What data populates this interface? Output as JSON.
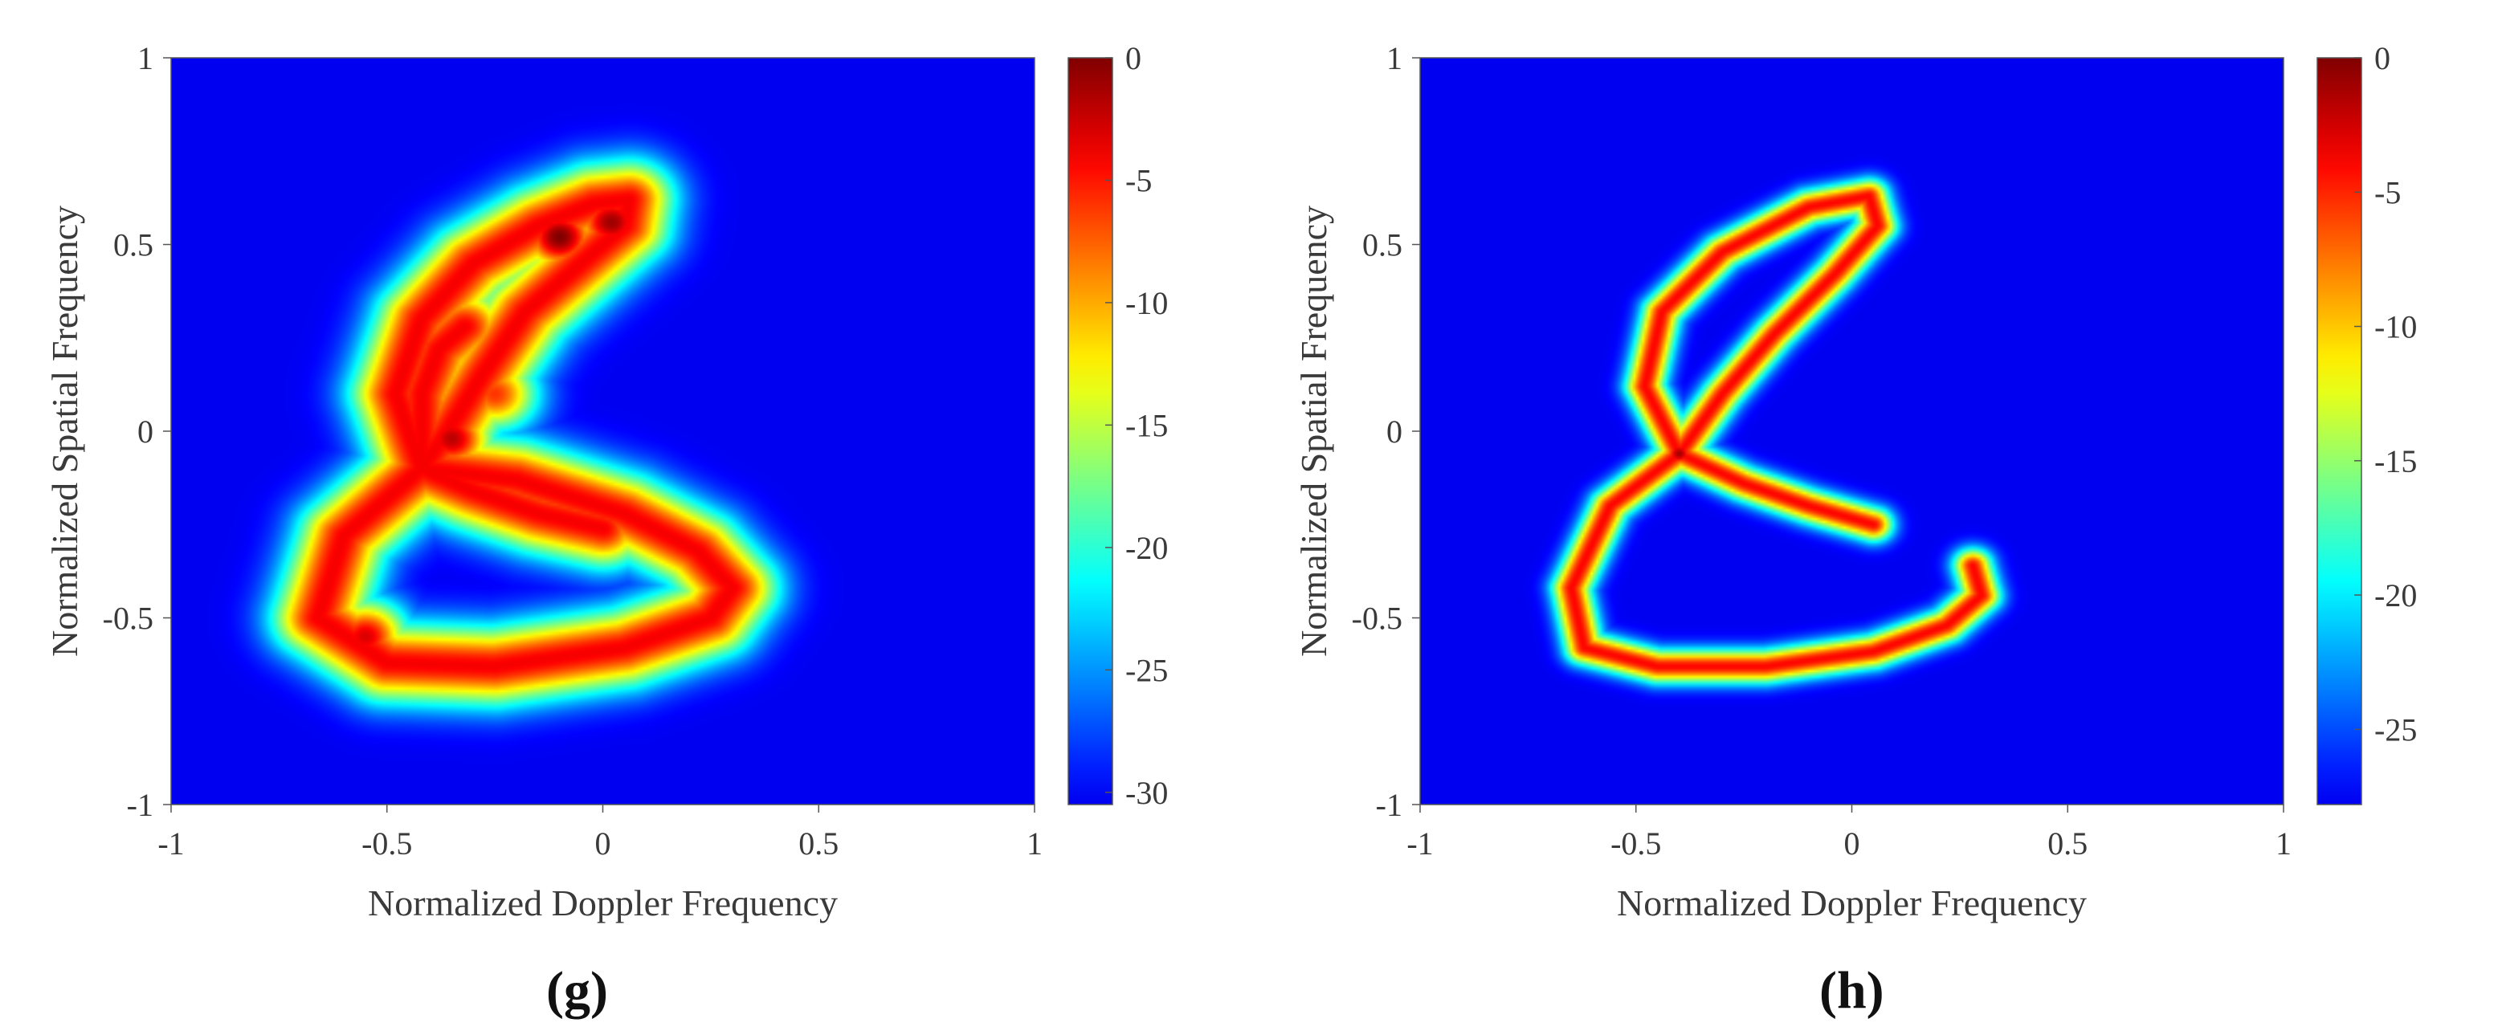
{
  "chart_data": [
    {
      "type": "heatmap",
      "panel_label": "(g)",
      "xlabel": "Normalized Doppler Frequency",
      "ylabel": "Normalized Spatial Frequency",
      "xlim": [
        -1,
        1
      ],
      "ylim": [
        -1,
        1
      ],
      "x_ticks": [
        "-1",
        "-0.5",
        "0",
        "0.5",
        "1"
      ],
      "y_ticks": [
        "1",
        "0.5",
        "0",
        "-0.5",
        "-1"
      ],
      "colorbar": {
        "range": [
          -30.5,
          0
        ],
        "ticks": [
          "0",
          "-5",
          "-10",
          "-15",
          "-20",
          "-25",
          "-30"
        ],
        "colormap": "jet"
      },
      "ridge_width": 0.075,
      "curves": [
        {
          "name": "lower-loop",
          "points": [
            [
              -0.42,
              -0.1
            ],
            [
              -0.6,
              -0.28
            ],
            [
              -0.66,
              -0.5
            ],
            [
              -0.5,
              -0.62
            ],
            [
              -0.25,
              -0.63
            ],
            [
              0.05,
              -0.58
            ],
            [
              0.25,
              -0.5
            ],
            [
              0.3,
              -0.42
            ],
            [
              0.22,
              -0.32
            ],
            [
              0.05,
              -0.22
            ],
            [
              -0.2,
              -0.13
            ],
            [
              -0.42,
              -0.1
            ]
          ]
        },
        {
          "name": "upper-outer-arc",
          "points": [
            [
              -0.42,
              -0.1
            ],
            [
              -0.48,
              0.1
            ],
            [
              -0.42,
              0.3
            ],
            [
              -0.3,
              0.45
            ],
            [
              -0.15,
              0.55
            ],
            [
              -0.02,
              0.61
            ],
            [
              0.06,
              0.62
            ],
            [
              0.05,
              0.55
            ],
            [
              -0.05,
              0.45
            ],
            [
              -0.18,
              0.32
            ],
            [
              -0.28,
              0.15
            ],
            [
              -0.36,
              0.0
            ],
            [
              -0.42,
              -0.1
            ]
          ]
        },
        {
          "name": "spur",
          "points": [
            [
              -0.42,
              -0.1
            ],
            [
              -0.3,
              -0.16
            ],
            [
              -0.15,
              -0.22
            ],
            [
              0.0,
              -0.26
            ]
          ]
        },
        {
          "name": "inner-arc",
          "points": [
            [
              -0.42,
              -0.1
            ],
            [
              -0.42,
              0.1
            ],
            [
              -0.38,
              0.22
            ],
            [
              -0.32,
              0.28
            ]
          ]
        }
      ],
      "blobs": [
        {
          "x": -0.1,
          "y": 0.52,
          "value": 0
        },
        {
          "x": -0.35,
          "y": -0.02,
          "value": -2
        },
        {
          "x": -0.55,
          "y": -0.55,
          "value": -3
        },
        {
          "x": 0.02,
          "y": 0.56,
          "value": -1
        },
        {
          "x": -0.25,
          "y": 0.1,
          "value": -6
        }
      ]
    },
    {
      "type": "heatmap",
      "panel_label": "(h)",
      "xlabel": "Normalized Doppler Frequency",
      "ylabel": "Normalized Spatial Frequency",
      "xlim": [
        -1,
        1
      ],
      "ylim": [
        -1,
        1
      ],
      "x_ticks": [
        "-1",
        "-0.5",
        "0",
        "0.5",
        "1"
      ],
      "y_ticks": [
        "1",
        "0.5",
        "0",
        "-0.5",
        "-1"
      ],
      "colorbar": {
        "range": [
          -27.8,
          0
        ],
        "ticks": [
          "0",
          "-5",
          "-10",
          "-15",
          "-20",
          "-25"
        ],
        "colormap": "jet"
      },
      "ridge_width": 0.032,
      "curves": [
        {
          "name": "upper-loop",
          "points": [
            [
              -0.4,
              -0.06
            ],
            [
              -0.48,
              0.12
            ],
            [
              -0.44,
              0.32
            ],
            [
              -0.3,
              0.48
            ],
            [
              -0.1,
              0.6
            ],
            [
              0.04,
              0.63
            ],
            [
              0.06,
              0.55
            ],
            [
              -0.04,
              0.42
            ],
            [
              -0.18,
              0.26
            ],
            [
              -0.3,
              0.1
            ],
            [
              -0.4,
              -0.06
            ]
          ]
        },
        {
          "name": "spur",
          "points": [
            [
              -0.4,
              -0.06
            ],
            [
              -0.25,
              -0.14
            ],
            [
              -0.1,
              -0.2
            ],
            [
              0.05,
              -0.25
            ]
          ]
        },
        {
          "name": "lower-arc",
          "points": [
            [
              -0.4,
              -0.06
            ],
            [
              -0.56,
              -0.2
            ],
            [
              -0.65,
              -0.42
            ],
            [
              -0.62,
              -0.58
            ],
            [
              -0.45,
              -0.63
            ],
            [
              -0.2,
              -0.63
            ],
            [
              0.05,
              -0.59
            ],
            [
              0.22,
              -0.52
            ],
            [
              0.3,
              -0.44
            ],
            [
              0.28,
              -0.36
            ]
          ]
        }
      ],
      "blobs": [
        {
          "x": -0.4,
          "y": -0.06,
          "value": -1
        }
      ]
    }
  ]
}
